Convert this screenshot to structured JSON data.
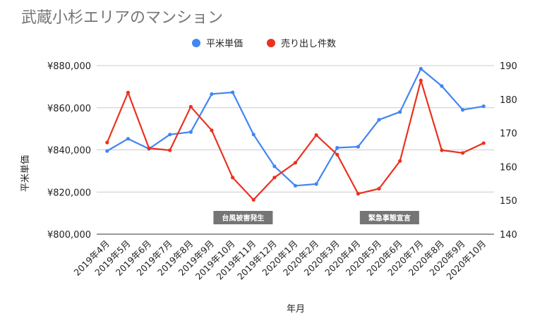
{
  "chart_data": {
    "type": "line",
    "title": "武蔵小杉エリアのマンション",
    "xlabel": "年月",
    "ylabel_left": "平米単価",
    "ylabel_right": "",
    "categories": [
      "2019年4月",
      "2019年5月",
      "2019年6月",
      "2019年7月",
      "2019年8月",
      "2019年9月",
      "2019年10月",
      "2019年11月",
      "2019年12月",
      "2020年1月",
      "2020年2月",
      "2020年3月",
      "2020年4月",
      "2020年5月",
      "2020年6月",
      "2020年7月",
      "2020年8月",
      "2020年9月",
      "2020年10月"
    ],
    "left_axis": {
      "min": 800000,
      "max": 880000,
      "ticks": [
        800000,
        820000,
        840000,
        860000,
        880000
      ],
      "tick_labels": [
        "¥800,000",
        "¥820,000",
        "¥840,000",
        "¥860,000",
        "¥880,000"
      ]
    },
    "right_axis": {
      "min": 140,
      "max": 190,
      "ticks": [
        140,
        150,
        160,
        170,
        180,
        190
      ],
      "tick_labels": [
        "140",
        "150",
        "160",
        "170",
        "180",
        "190"
      ]
    },
    "series": [
      {
        "name": "平米単価",
        "axis": "left",
        "color": "#4285f4",
        "values": [
          839500,
          845300,
          840500,
          847300,
          848500,
          866500,
          867300,
          847300,
          832200,
          823000,
          823800,
          841000,
          841500,
          854300,
          858000,
          878500,
          870300,
          859000,
          860700
        ]
      },
      {
        "name": "売り出し件数",
        "axis": "right",
        "color": "#ea321f",
        "values": [
          167.2,
          182.0,
          165.5,
          164.9,
          177.8,
          170.8,
          156.8,
          150.2,
          156.8,
          161.2,
          169.4,
          163.6,
          152.0,
          153.5,
          161.7,
          185.6,
          164.9,
          164.1,
          167.0
        ]
      }
    ],
    "annotations": [
      {
        "text": "台風被害発生",
        "category_index": 6.5
      },
      {
        "text": "緊急事態宣言",
        "category_index": 13.5
      }
    ],
    "legend": "top-center",
    "grid": "horizontal"
  }
}
